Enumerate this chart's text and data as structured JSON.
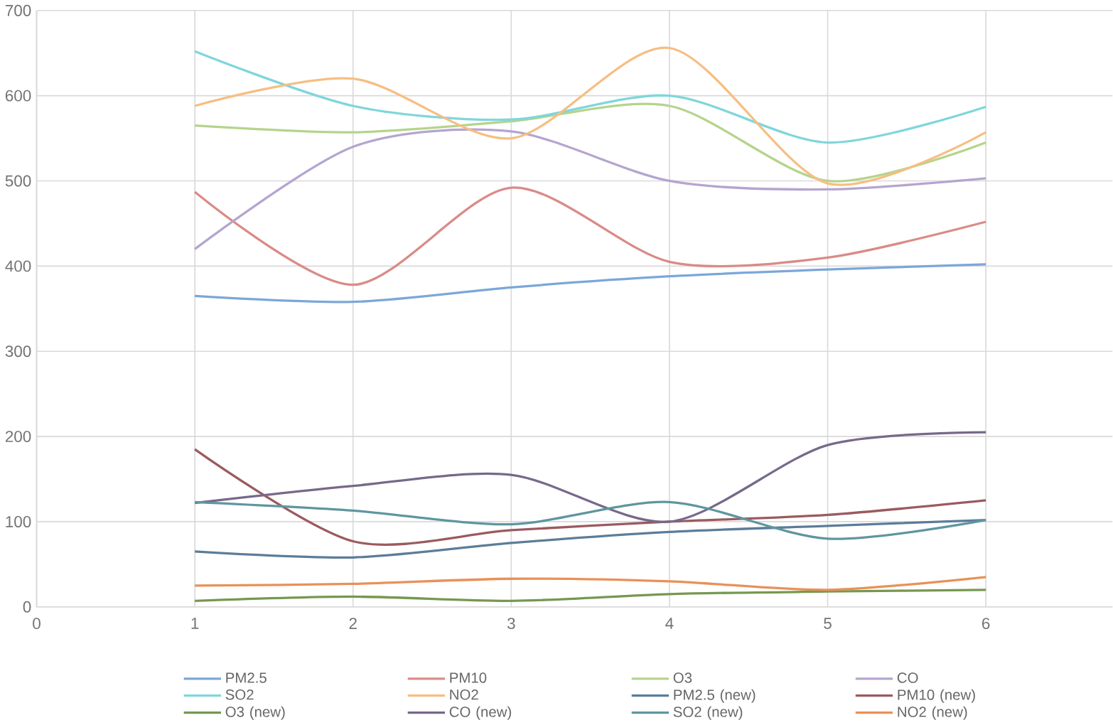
{
  "chart_data": {
    "type": "line",
    "x": [
      1,
      2,
      3,
      4,
      5,
      6
    ],
    "xlim": [
      0,
      6.8
    ],
    "xticks": [
      0,
      1,
      2,
      3,
      4,
      5,
      6
    ],
    "ylim": [
      0,
      700
    ],
    "yticks": [
      0,
      100,
      200,
      300,
      400,
      500,
      600,
      700
    ],
    "grid": true,
    "legend": "bottom",
    "marker": "none",
    "line_style": "solid",
    "series": [
      {
        "name": "PM2.5",
        "color": "#7ba7d9",
        "values": [
          365,
          358,
          375,
          388,
          396,
          402
        ]
      },
      {
        "name": "PM10",
        "color": "#d98b87",
        "values": [
          487,
          378,
          492,
          405,
          410,
          452
        ]
      },
      {
        "name": "O3",
        "color": "#b5d48c",
        "values": [
          565,
          557,
          570,
          588,
          500,
          545
        ]
      },
      {
        "name": "CO",
        "color": "#b4a5d0",
        "values": [
          420,
          540,
          558,
          500,
          490,
          503
        ]
      },
      {
        "name": "SO2",
        "color": "#7fd6dc",
        "values": [
          652,
          588,
          572,
          600,
          545,
          587
        ]
      },
      {
        "name": "NO2",
        "color": "#f6be82",
        "values": [
          588,
          620,
          550,
          656,
          497,
          557
        ]
      },
      {
        "name": "PM2.5 (new)",
        "color": "#5b7d99",
        "values": [
          65,
          58,
          75,
          88,
          95,
          102
        ]
      },
      {
        "name": "PM10 (new)",
        "color": "#9b5a5f",
        "values": [
          185,
          77,
          90,
          100,
          108,
          125
        ]
      },
      {
        "name": "O3 (new)",
        "color": "#76984f",
        "values": [
          7,
          12,
          7,
          15,
          18,
          20
        ]
      },
      {
        "name": "CO (new)",
        "color": "#76698a",
        "values": [
          122,
          142,
          155,
          100,
          190,
          205
        ]
      },
      {
        "name": "SO2 (new)",
        "color": "#5e96a0",
        "values": [
          123,
          113,
          97,
          123,
          80,
          102
        ]
      },
      {
        "name": "NO2 (new)",
        "color": "#e89157",
        "values": [
          25,
          27,
          33,
          30,
          20,
          35
        ]
      }
    ]
  }
}
